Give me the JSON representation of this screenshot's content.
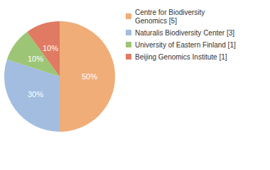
{
  "chart_data": {
    "type": "pie",
    "categories": [
      "Centre for Biodiversity Genomics [5]",
      "Naturalis Biodiversity Center [3]",
      "University of Eastern Finland [1]",
      "Beijing Genomics Institute [1]"
    ],
    "values": [
      50,
      30,
      10,
      10
    ],
    "value_labels": [
      "50%",
      "30%",
      "10%",
      "10%"
    ],
    "colors": [
      "#f0ad78",
      "#a2bde0",
      "#9dc576",
      "#e07a62"
    ],
    "data_labels": true,
    "legend": "right"
  }
}
